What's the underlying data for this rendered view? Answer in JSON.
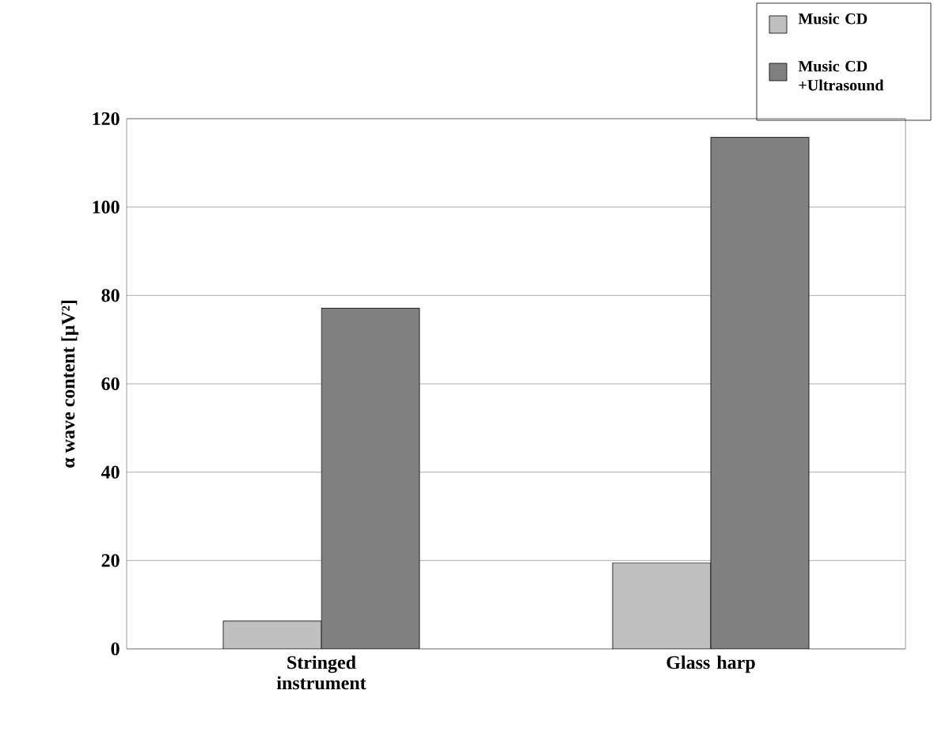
{
  "chart_data": {
    "type": "bar",
    "ylabel": "α wave content [μV²]",
    "categories": [
      "Stringed instrument",
      "Glass harp"
    ],
    "series": [
      {
        "name": "Music CD",
        "color": "#c0c0c0",
        "values": [
          6.3,
          19.5
        ]
      },
      {
        "name": "Music CD +Ultrasound",
        "color": "#808080",
        "values": [
          77.1,
          115.8
        ]
      }
    ],
    "ylim": [
      0,
      120
    ],
    "yticks": [
      0,
      20,
      40,
      60,
      80,
      100,
      120
    ],
    "grid": "y",
    "legend": "top right"
  }
}
